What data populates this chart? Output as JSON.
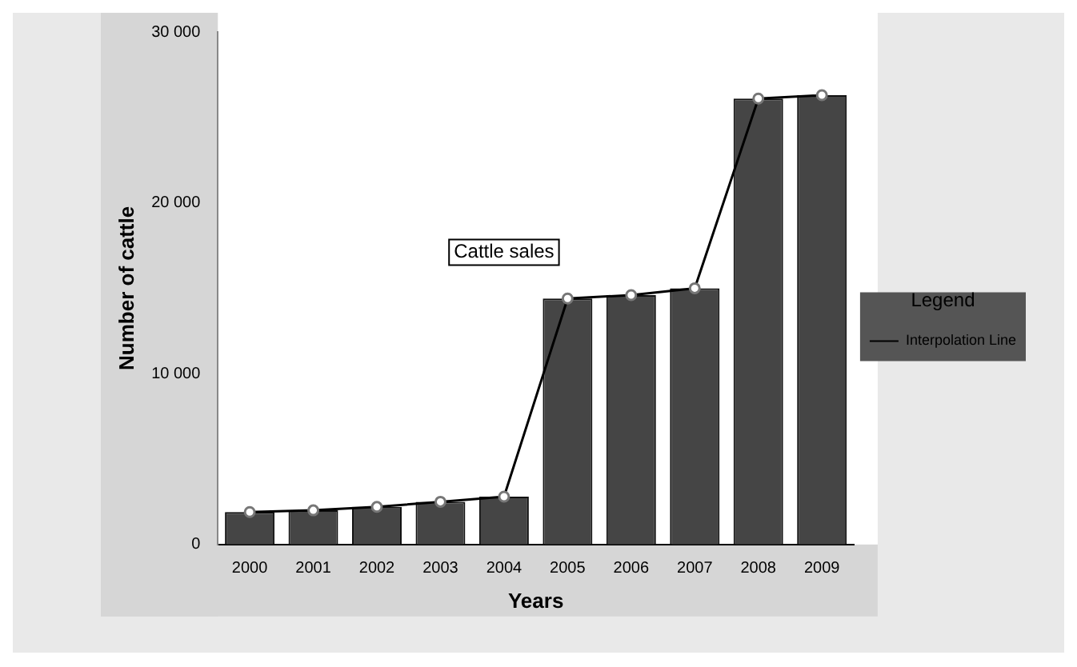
{
  "chart_data": {
    "type": "bar",
    "xlabel": "Years",
    "ylabel": "Number of cattle",
    "legend_title": "Legend",
    "annotations": [
      "Cattle sales"
    ],
    "categories": [
      "2000",
      "2001",
      "2002",
      "2003",
      "2004",
      "2005",
      "2006",
      "2007",
      "2008",
      "2009"
    ],
    "series": [
      {
        "color": "#454545",
        "values": [
          1900,
          2000,
          2200,
          2500,
          2800,
          14400,
          14600,
          15000,
          26100,
          26300
        ]
      },
      {
        "type": "line",
        "name": "Interpolation Line",
        "color": "#000000",
        "marker": "circle",
        "line_style": "solid",
        "values": [
          1900,
          2000,
          2200,
          2500,
          2800,
          14400,
          14600,
          15000,
          26100,
          26300
        ]
      }
    ],
    "ylim": [
      0,
      30000
    ],
    "yticks": [
      0,
      {
        "value": 10000,
        "label": "10 000"
      },
      {
        "value": 20000,
        "label": "20 000"
      },
      {
        "value": 30000,
        "label": "30 000"
      }
    ],
    "grid": false,
    "legend": "right"
  }
}
